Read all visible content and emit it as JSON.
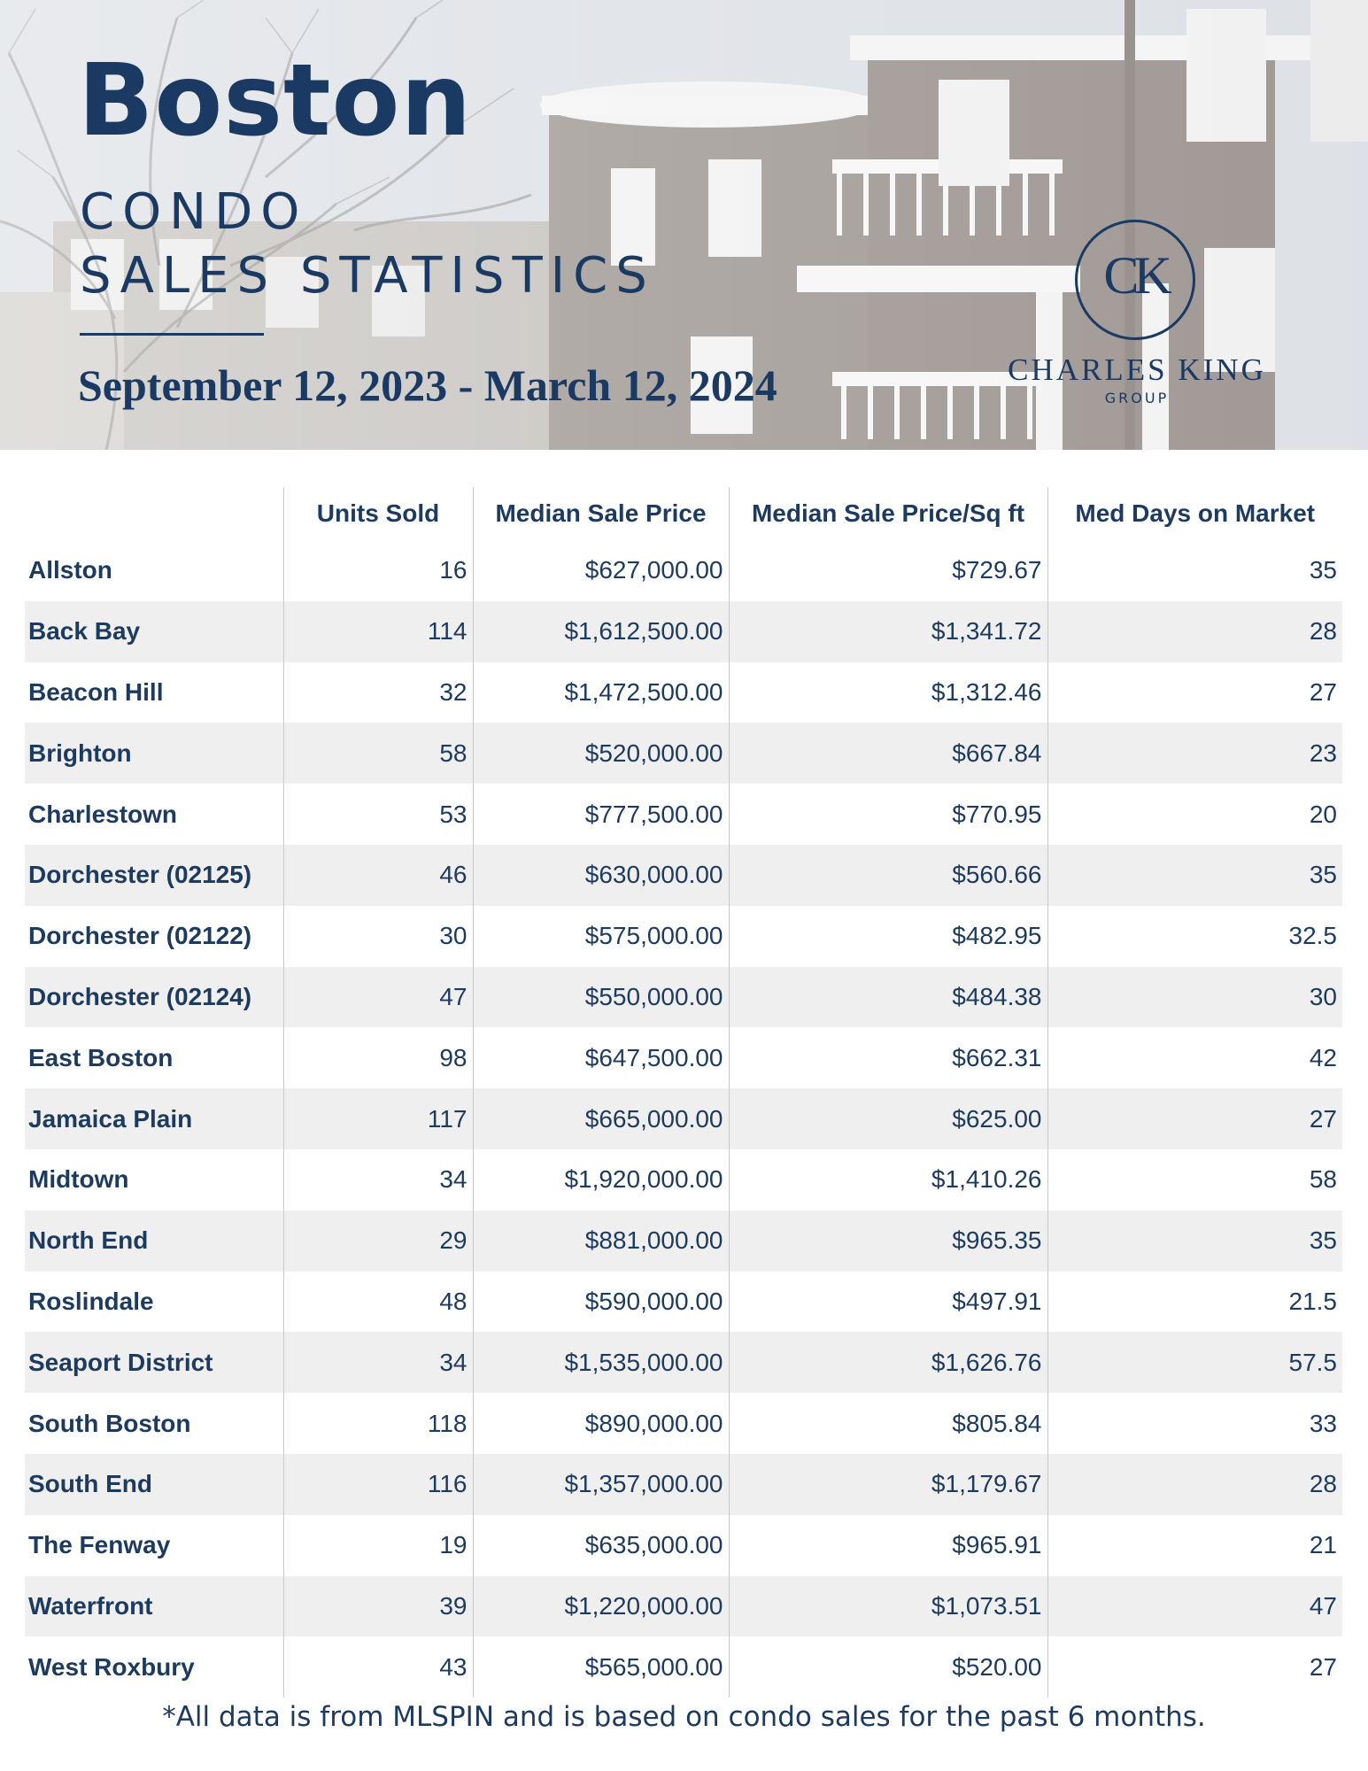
{
  "header": {
    "city": "Boston",
    "subtitle_line1": "CONDO",
    "subtitle_line2": "SALES STATISTICS",
    "date_range": "September 12, 2023 - March 12, 2024",
    "logo_monogram": "CK",
    "logo_name": "CHARLES KING",
    "logo_group": "GROUP"
  },
  "table": {
    "columns": [
      "",
      "Units Sold",
      "Median Sale Price",
      "Median Sale Price/Sq ft",
      "Med Days on Market"
    ],
    "rows": [
      [
        "Allston",
        "16",
        "$627,000.00",
        "$729.67",
        "35"
      ],
      [
        "Back Bay",
        "114",
        "$1,612,500.00",
        "$1,341.72",
        "28"
      ],
      [
        "Beacon Hill",
        "32",
        "$1,472,500.00",
        "$1,312.46",
        "27"
      ],
      [
        "Brighton",
        "58",
        "$520,000.00",
        "$667.84",
        "23"
      ],
      [
        "Charlestown",
        "53",
        "$777,500.00",
        "$770.95",
        "20"
      ],
      [
        "Dorchester (02125)",
        "46",
        "$630,000.00",
        "$560.66",
        "35"
      ],
      [
        "Dorchester (02122)",
        "30",
        "$575,000.00",
        "$482.95",
        "32.5"
      ],
      [
        "Dorchester (02124)",
        "47",
        "$550,000.00",
        "$484.38",
        "30"
      ],
      [
        "East Boston",
        "98",
        "$647,500.00",
        "$662.31",
        "42"
      ],
      [
        "Jamaica Plain",
        "117",
        "$665,000.00",
        "$625.00",
        "27"
      ],
      [
        "Midtown",
        "34",
        "$1,920,000.00",
        "$1,410.26",
        "58"
      ],
      [
        "North End",
        "29",
        "$881,000.00",
        "$965.35",
        "35"
      ],
      [
        "Roslindale",
        "48",
        "$590,000.00",
        "$497.91",
        "21.5"
      ],
      [
        "Seaport District",
        "34",
        "$1,535,000.00",
        "$1,626.76",
        "57.5"
      ],
      [
        "South Boston",
        "118",
        "$890,000.00",
        "$805.84",
        "33"
      ],
      [
        "South End",
        "116",
        "$1,357,000.00",
        "$1,179.67",
        "28"
      ],
      [
        "The Fenway",
        "19",
        "$635,000.00",
        "$965.91",
        "21"
      ],
      [
        "Waterfront",
        "39",
        "$1,220,000.00",
        "$1,073.51",
        "47"
      ],
      [
        "West Roxbury",
        "43",
        "$565,000.00",
        "$520.00",
        "27"
      ]
    ]
  },
  "footnote": "*All data is from MLSPIN and is based on condo sales for the past 6 months.",
  "colors": {
    "brand_navy": "#1b3a63",
    "row_stripe": "#efefef"
  }
}
